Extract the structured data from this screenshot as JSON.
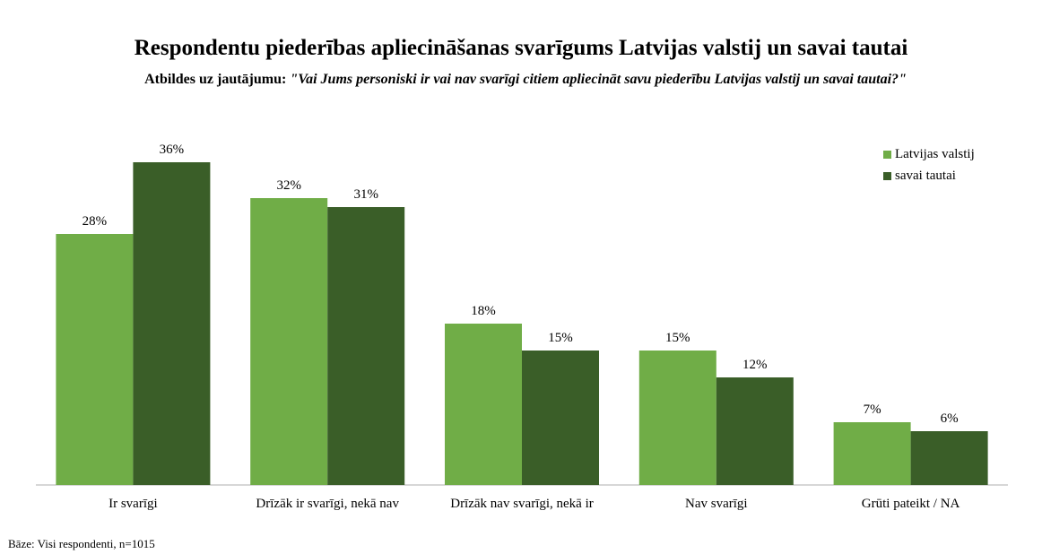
{
  "title": "Respondentu piederības apliecināšanas svarīgums Latvijas valstij un savai tautai",
  "subtitle_prefix": "Atbildes uz jautājumu: ",
  "subtitle_question": "\"Vai Jums personiski ir vai nav svarīgi  citiem apliecināt savu piederību Latvijas valstij un savai tautai?\"",
  "footnote": "Bāze: Visi respondenti, n=1015",
  "colors": {
    "series1": "#70ad47",
    "series2": "#3a5e28",
    "axis": "#bfbfbf"
  },
  "chart_data": {
    "type": "bar",
    "categories": [
      "Ir svarīgi",
      "Drīzāk ir svarīgi, nekā nav",
      "Drīzāk nav svarīgi, nekā ir",
      "Nav svarīgi",
      "Grūti pateikt / NA"
    ],
    "series": [
      {
        "name": "Latvijas valstij",
        "values": [
          28,
          32,
          18,
          15,
          7
        ],
        "labels": [
          "28%",
          "32%",
          "18%",
          "15%",
          "7%"
        ]
      },
      {
        "name": "savai tautai",
        "values": [
          36,
          31,
          15,
          12,
          6
        ],
        "labels": [
          "36%",
          "31%",
          "15%",
          "12%",
          "6%"
        ]
      }
    ],
    "ylim": [
      0,
      36
    ],
    "legend": "top-right",
    "grid": false
  }
}
